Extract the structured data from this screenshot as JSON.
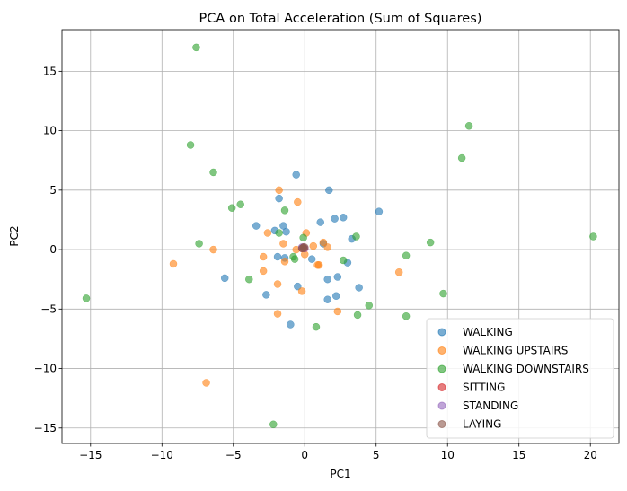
{
  "chart_data": {
    "type": "scatter",
    "title": "PCA on Total Acceleration (Sum of Squares)",
    "xlabel": "PC1",
    "ylabel": "PC2",
    "xlim": [
      -17,
      22
    ],
    "ylim": [
      -16.3,
      18.5
    ],
    "xticks": [
      -15,
      -10,
      -5,
      0,
      5,
      10,
      15,
      20
    ],
    "yticks": [
      -15,
      -10,
      -5,
      0,
      5,
      10,
      15
    ],
    "grid": true,
    "legend_position": "bottom-right",
    "series": [
      {
        "name": "WALKING",
        "color": "#1f77b4",
        "points": [
          [
            -0.6,
            6.3
          ],
          [
            1.7,
            5.0
          ],
          [
            -1.8,
            4.3
          ],
          [
            2.7,
            2.7
          ],
          [
            2.1,
            2.6
          ],
          [
            1.1,
            2.3
          ],
          [
            -3.4,
            2.0
          ],
          [
            -1.5,
            2.0
          ],
          [
            -1.3,
            1.5
          ],
          [
            -2.1,
            1.6
          ],
          [
            5.2,
            3.2
          ],
          [
            3.3,
            0.9
          ],
          [
            1.3,
            0.5
          ],
          [
            -1.9,
            -0.6
          ],
          [
            -1.4,
            -0.7
          ],
          [
            0.5,
            -0.8
          ],
          [
            3.0,
            -1.1
          ],
          [
            2.3,
            -2.3
          ],
          [
            1.6,
            -2.5
          ],
          [
            3.8,
            -3.2
          ],
          [
            -0.5,
            -3.1
          ],
          [
            -2.7,
            -3.8
          ],
          [
            2.2,
            -3.9
          ],
          [
            1.6,
            -4.2
          ],
          [
            -1.0,
            -6.3
          ],
          [
            -5.6,
            -2.4
          ]
        ]
      },
      {
        "name": "WALKING UPSTAIRS",
        "color": "#ff7f0e",
        "points": [
          [
            -1.8,
            5.0
          ],
          [
            -0.5,
            4.0
          ],
          [
            0.1,
            1.4
          ],
          [
            -2.6,
            1.4
          ],
          [
            -1.5,
            0.5
          ],
          [
            1.3,
            0.6
          ],
          [
            1.6,
            0.2
          ],
          [
            0.6,
            0.3
          ],
          [
            -0.6,
            0.0
          ],
          [
            0.0,
            -0.4
          ],
          [
            -2.9,
            -0.6
          ],
          [
            0.9,
            -1.3
          ],
          [
            1.0,
            -1.3
          ],
          [
            -1.4,
            -1.0
          ],
          [
            -2.9,
            -1.8
          ],
          [
            -1.9,
            -2.9
          ],
          [
            -0.2,
            -3.5
          ],
          [
            -1.9,
            -5.4
          ],
          [
            2.3,
            -5.2
          ],
          [
            6.6,
            -1.9
          ],
          [
            -6.4,
            0.0
          ],
          [
            -9.2,
            -1.2
          ],
          [
            -6.9,
            -11.2
          ]
        ]
      },
      {
        "name": "WALKING DOWNSTAIRS",
        "color": "#2ca02c",
        "points": [
          [
            -7.6,
            17.0
          ],
          [
            11.5,
            10.4
          ],
          [
            -8.0,
            8.8
          ],
          [
            11.0,
            7.7
          ],
          [
            -6.4,
            6.5
          ],
          [
            -4.5,
            3.8
          ],
          [
            -5.1,
            3.5
          ],
          [
            -1.4,
            3.3
          ],
          [
            -1.8,
            1.4
          ],
          [
            -0.1,
            1.0
          ],
          [
            3.6,
            1.1
          ],
          [
            -7.4,
            0.5
          ],
          [
            8.8,
            0.6
          ],
          [
            20.2,
            1.1
          ],
          [
            7.1,
            -0.5
          ],
          [
            -0.8,
            -0.6
          ],
          [
            -0.7,
            -0.8
          ],
          [
            2.7,
            -0.9
          ],
          [
            -3.9,
            -2.5
          ],
          [
            -15.3,
            -4.1
          ],
          [
            9.7,
            -3.7
          ],
          [
            4.5,
            -4.7
          ],
          [
            3.7,
            -5.5
          ],
          [
            7.1,
            -5.6
          ],
          [
            0.8,
            -6.5
          ],
          [
            -2.2,
            -14.7
          ]
        ]
      },
      {
        "name": "SITTING",
        "color": "#d62728",
        "points": [
          [
            -0.1,
            0.2
          ],
          [
            -0.2,
            0.1
          ],
          [
            0.0,
            0.1
          ]
        ]
      },
      {
        "name": "STANDING",
        "color": "#9467bd",
        "points": [
          [
            -0.1,
            0.2
          ],
          [
            0.0,
            0.1
          ],
          [
            -0.2,
            0.2
          ]
        ]
      },
      {
        "name": "LAYING",
        "color": "#8c564b",
        "points": [
          [
            -0.1,
            0.2
          ],
          [
            0.0,
            0.2
          ],
          [
            -0.2,
            0.1
          ],
          [
            -0.1,
            0.1
          ]
        ]
      }
    ]
  }
}
